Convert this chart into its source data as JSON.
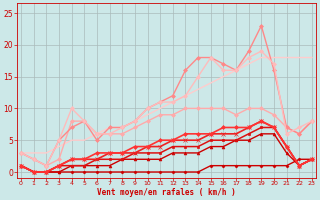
{
  "xlabel": "Vent moyen/en rafales ( km/h )",
  "bg_color": "#cce8e8",
  "grid_color": "#aabbbb",
  "xlim": [
    -0.3,
    23.3
  ],
  "ylim": [
    -1.0,
    26.5
  ],
  "yticks": [
    0,
    5,
    10,
    15,
    20,
    25
  ],
  "xticks": [
    0,
    1,
    2,
    3,
    4,
    5,
    6,
    7,
    8,
    9,
    10,
    11,
    12,
    13,
    14,
    15,
    16,
    17,
    18,
    19,
    20,
    21,
    22,
    23
  ],
  "lines": [
    {
      "x": [
        0,
        1,
        2,
        3,
        4,
        5,
        6,
        7,
        8,
        9,
        10,
        11,
        12,
        13,
        14,
        15,
        16,
        17,
        18,
        19,
        20,
        21,
        22,
        23
      ],
      "y": [
        1,
        0,
        0,
        0,
        0,
        0,
        0,
        0,
        0,
        0,
        0,
        0,
        0,
        0,
        0,
        1,
        1,
        1,
        1,
        1,
        1,
        1,
        2,
        2
      ],
      "color": "#cc0000",
      "lw": 1.0,
      "marker": "D",
      "ms": 1.5
    },
    {
      "x": [
        0,
        1,
        2,
        3,
        4,
        5,
        6,
        7,
        8,
        9,
        10,
        11,
        12,
        13,
        14,
        15,
        16,
        17,
        18,
        19,
        20,
        21,
        22,
        23
      ],
      "y": [
        1,
        0,
        0,
        0,
        1,
        1,
        1,
        1,
        2,
        2,
        2,
        2,
        3,
        3,
        3,
        4,
        4,
        5,
        5,
        6,
        6,
        3,
        1,
        2
      ],
      "color": "#cc0000",
      "lw": 1.0,
      "marker": "^",
      "ms": 2.0
    },
    {
      "x": [
        0,
        1,
        2,
        3,
        4,
        5,
        6,
        7,
        8,
        9,
        10,
        11,
        12,
        13,
        14,
        15,
        16,
        17,
        18,
        19,
        20,
        21,
        22,
        23
      ],
      "y": [
        1,
        0,
        0,
        1,
        1,
        1,
        2,
        2,
        2,
        3,
        3,
        3,
        4,
        4,
        4,
        5,
        5,
        5,
        6,
        7,
        7,
        4,
        1,
        2
      ],
      "color": "#dd1111",
      "lw": 1.1,
      "marker": "s",
      "ms": 2.0
    },
    {
      "x": [
        0,
        1,
        2,
        3,
        4,
        5,
        6,
        7,
        8,
        9,
        10,
        11,
        12,
        13,
        14,
        15,
        16,
        17,
        18,
        19,
        20,
        21,
        22,
        23
      ],
      "y": [
        1,
        0,
        0,
        1,
        2,
        2,
        2,
        3,
        3,
        3,
        4,
        4,
        5,
        5,
        5,
        6,
        6,
        6,
        7,
        8,
        7,
        4,
        1,
        2
      ],
      "color": "#ee2222",
      "lw": 1.2,
      "marker": "x",
      "ms": 2.5
    },
    {
      "x": [
        0,
        1,
        2,
        3,
        4,
        5,
        6,
        7,
        8,
        9,
        10,
        11,
        12,
        13,
        14,
        15,
        16,
        17,
        18,
        19,
        20,
        21,
        22,
        23
      ],
      "y": [
        1,
        0,
        0,
        1,
        2,
        2,
        3,
        3,
        3,
        4,
        4,
        5,
        5,
        6,
        6,
        6,
        7,
        7,
        7,
        8,
        7,
        4,
        1,
        2
      ],
      "color": "#ff3333",
      "lw": 1.2,
      "marker": "D",
      "ms": 2.0
    },
    {
      "x": [
        0,
        1,
        2,
        3,
        4,
        5,
        6,
        7,
        8,
        9,
        10,
        11,
        12,
        13,
        14,
        15,
        16,
        17,
        18,
        19,
        20,
        21,
        22,
        23
      ],
      "y": [
        3,
        2,
        1,
        2,
        8,
        8,
        6,
        6,
        6,
        7,
        8,
        9,
        9,
        10,
        10,
        10,
        10,
        9,
        10,
        10,
        9,
        7,
        6,
        8
      ],
      "color": "#ffaaaa",
      "lw": 1.0,
      "marker": "D",
      "ms": 2.0
    },
    {
      "x": [
        0,
        1,
        2,
        3,
        4,
        5,
        6,
        7,
        8,
        9,
        10,
        11,
        12,
        13,
        14,
        15,
        16,
        17,
        18,
        19,
        20,
        21,
        22,
        23
      ],
      "y": [
        3,
        3,
        3,
        4,
        5,
        5,
        6,
        7,
        7,
        8,
        9,
        10,
        11,
        12,
        13,
        14,
        15,
        16,
        17,
        18,
        18,
        18,
        18,
        18
      ],
      "color": "#ffcccc",
      "lw": 1.0,
      "marker": null,
      "ms": 0
    },
    {
      "x": [
        0,
        1,
        2,
        3,
        4,
        5,
        6,
        7,
        8,
        9,
        10,
        11,
        12,
        13,
        14,
        15,
        16,
        17,
        18,
        19,
        20,
        21,
        22,
        23
      ],
      "y": [
        3,
        2,
        1,
        5,
        7,
        8,
        5,
        7,
        7,
        8,
        10,
        11,
        12,
        16,
        18,
        18,
        17,
        16,
        19,
        23,
        16,
        7,
        6,
        8
      ],
      "color": "#ff8888",
      "lw": 1.0,
      "marker": "D",
      "ms": 2.0
    },
    {
      "x": [
        0,
        1,
        2,
        3,
        4,
        5,
        6,
        7,
        8,
        9,
        10,
        11,
        12,
        13,
        14,
        15,
        16,
        17,
        18,
        19,
        20,
        21,
        22,
        23
      ],
      "y": [
        3,
        2,
        1,
        5,
        10,
        8,
        6,
        6,
        7,
        8,
        10,
        11,
        11,
        12,
        15,
        18,
        16,
        16,
        18,
        19,
        17,
        6,
        7,
        8
      ],
      "color": "#ffbbbb",
      "lw": 1.0,
      "marker": "D",
      "ms": 2.0
    }
  ]
}
